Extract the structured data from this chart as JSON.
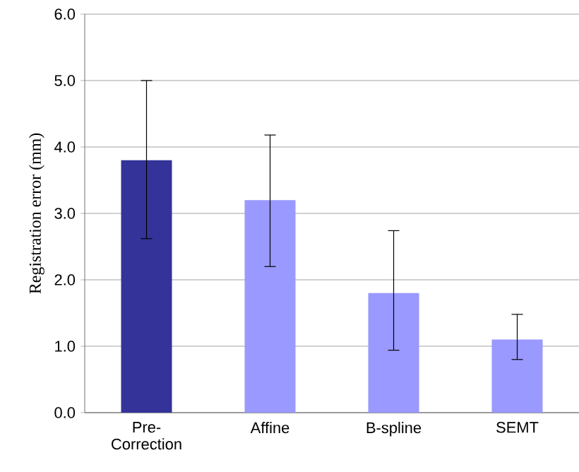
{
  "chart_data": {
    "type": "bar",
    "ylabel": "Registration error (mm)",
    "categories": [
      "Pre-Correction",
      "Affine",
      "B-spline",
      "SEMT"
    ],
    "values": [
      3.8,
      3.2,
      1.8,
      1.1
    ],
    "colors": [
      "#333399",
      "#9999ff",
      "#9999ff",
      "#9999ff"
    ],
    "errors": [
      [
        2.62,
        5.0
      ],
      [
        2.2,
        4.18
      ],
      [
        0.94,
        2.74
      ],
      [
        0.8,
        1.48
      ]
    ],
    "ylim": [
      0,
      6
    ],
    "yticks": [
      {
        "value": 0,
        "label": "0.0"
      },
      {
        "value": 1,
        "label": "1.0"
      },
      {
        "value": 2,
        "label": "2.0"
      },
      {
        "value": 3,
        "label": "3.0"
      },
      {
        "value": 4,
        "label": "4.0"
      },
      {
        "value": 5,
        "label": "5.0"
      },
      {
        "value": 6,
        "label": "6.0"
      }
    ],
    "grid": "y"
  }
}
